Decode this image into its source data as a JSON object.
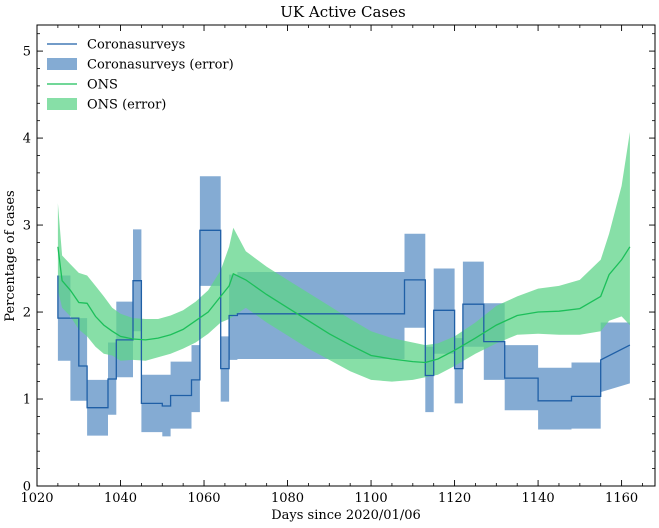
{
  "chart_data": {
    "type": "line",
    "title": "UK Active Cases",
    "xlabel": "Days since 2020/01/06",
    "ylabel": "Percentage of cases",
    "xlim": [
      1020,
      1168
    ],
    "ylim": [
      0,
      5.3
    ],
    "xticks": [
      1020,
      1040,
      1060,
      1080,
      1100,
      1120,
      1140,
      1160
    ],
    "yticks": [
      0,
      1,
      2,
      3,
      4,
      5
    ],
    "grid": false,
    "legend_position": "top-left",
    "colors": {
      "coronasurveys_line": "#1f5fa6",
      "coronasurveys_band": "#5b8fc4",
      "ons_line": "#1cbf5a",
      "ons_band": "#5fd48a"
    },
    "legend": [
      {
        "key": "cs_line",
        "label": "Coronasurveys"
      },
      {
        "key": "cs_band",
        "label": "Coronasurveys (error)"
      },
      {
        "key": "ons_line",
        "label": "ONS"
      },
      {
        "key": "ons_band",
        "label": "ONS (error)"
      }
    ],
    "series": [
      {
        "name": "Coronasurveys",
        "x": [
          1025,
          1025,
          1028,
          1028,
          1030,
          1030,
          1032,
          1032,
          1035,
          1035,
          1037,
          1037,
          1039,
          1039,
          1043,
          1043,
          1045,
          1045,
          1048,
          1048,
          1050,
          1050,
          1052,
          1052,
          1055,
          1055,
          1057,
          1057,
          1059,
          1059,
          1062,
          1062,
          1064,
          1064,
          1066,
          1066,
          1068,
          1068,
          1108,
          1108,
          1111,
          1111,
          1113,
          1113,
          1115,
          1115,
          1118,
          1118,
          1120,
          1120,
          1122,
          1122,
          1125,
          1125,
          1127,
          1127,
          1132,
          1132,
          1140,
          1140,
          1147,
          1147,
          1148,
          1148,
          1155,
          1155,
          1162
        ],
        "y": [
          2.42,
          1.93,
          1.93,
          1.93,
          1.93,
          1.38,
          1.38,
          0.9,
          0.9,
          0.9,
          0.9,
          1.23,
          1.23,
          1.68,
          1.68,
          2.36,
          2.36,
          0.95,
          0.95,
          0.95,
          0.95,
          0.92,
          0.92,
          1.04,
          1.04,
          1.04,
          1.04,
          1.22,
          1.22,
          2.94,
          2.94,
          2.94,
          2.94,
          1.35,
          1.35,
          1.96,
          1.96,
          1.98,
          1.98,
          2.37,
          2.37,
          2.37,
          2.37,
          1.27,
          1.27,
          2.02,
          2.02,
          2.02,
          2.02,
          1.35,
          1.35,
          2.09,
          2.09,
          2.09,
          2.09,
          1.66,
          1.66,
          1.24,
          1.24,
          0.98,
          0.98,
          0.98,
          0.98,
          1.03,
          1.03,
          1.45,
          1.62
        ],
        "upper": [
          2.42,
          2.42,
          2.42,
          1.93,
          1.93,
          1.93,
          1.93,
          1.22,
          1.22,
          1.22,
          1.22,
          1.65,
          1.65,
          2.12,
          2.12,
          2.95,
          2.95,
          1.28,
          1.28,
          1.28,
          1.28,
          1.28,
          1.28,
          1.43,
          1.43,
          1.43,
          1.43,
          1.62,
          1.62,
          3.56,
          3.56,
          3.56,
          3.56,
          1.72,
          1.72,
          2.43,
          2.43,
          2.46,
          2.46,
          2.9,
          2.9,
          2.9,
          2.9,
          1.6,
          1.6,
          2.5,
          2.5,
          2.5,
          2.5,
          1.7,
          1.7,
          2.58,
          2.58,
          2.58,
          2.58,
          2.1,
          2.1,
          1.62,
          1.62,
          1.36,
          1.36,
          1.36,
          1.36,
          1.42,
          1.42,
          1.88,
          1.88
        ],
        "lower": [
          1.44,
          1.44,
          1.44,
          0.98,
          0.98,
          0.98,
          0.98,
          0.58,
          0.58,
          0.58,
          0.58,
          0.82,
          0.82,
          1.25,
          1.25,
          1.78,
          1.78,
          0.62,
          0.62,
          0.62,
          0.62,
          0.57,
          0.57,
          0.66,
          0.66,
          0.66,
          0.66,
          0.85,
          0.85,
          2.3,
          2.3,
          2.3,
          2.3,
          0.97,
          0.97,
          1.45,
          1.45,
          1.46,
          1.46,
          1.82,
          1.82,
          1.82,
          1.82,
          0.85,
          0.85,
          1.52,
          1.52,
          1.52,
          1.52,
          0.95,
          0.95,
          1.6,
          1.6,
          1.6,
          1.6,
          1.22,
          1.22,
          0.87,
          0.87,
          0.65,
          0.65,
          0.65,
          0.65,
          0.66,
          0.66,
          1.08,
          1.18
        ]
      },
      {
        "name": "ONS",
        "x": [
          1025,
          1026,
          1028,
          1030,
          1032,
          1034,
          1036,
          1038,
          1040,
          1043,
          1046,
          1049,
          1052,
          1055,
          1058,
          1061,
          1064,
          1066,
          1067,
          1070,
          1075,
          1080,
          1085,
          1090,
          1095,
          1100,
          1105,
          1110,
          1113,
          1116,
          1120,
          1125,
          1130,
          1135,
          1140,
          1145,
          1150,
          1155,
          1157,
          1160,
          1162
        ],
        "y": [
          2.75,
          2.36,
          2.25,
          2.11,
          2.1,
          1.95,
          1.85,
          1.78,
          1.72,
          1.69,
          1.68,
          1.7,
          1.74,
          1.8,
          1.9,
          2.0,
          2.18,
          2.3,
          2.44,
          2.37,
          2.2,
          2.05,
          1.9,
          1.75,
          1.62,
          1.5,
          1.46,
          1.43,
          1.42,
          1.46,
          1.56,
          1.7,
          1.85,
          1.96,
          2.0,
          2.01,
          2.04,
          2.18,
          2.43,
          2.6,
          2.75
        ],
        "upper": [
          3.25,
          2.65,
          2.55,
          2.45,
          2.42,
          2.3,
          2.18,
          2.05,
          1.98,
          1.93,
          1.92,
          1.92,
          1.96,
          2.02,
          2.12,
          2.25,
          2.48,
          2.75,
          2.97,
          2.7,
          2.52,
          2.37,
          2.22,
          2.07,
          1.92,
          1.78,
          1.7,
          1.65,
          1.62,
          1.64,
          1.72,
          1.88,
          2.07,
          2.18,
          2.27,
          2.3,
          2.37,
          2.6,
          2.9,
          3.45,
          4.07
        ],
        "lower": [
          2.25,
          2.05,
          1.95,
          1.8,
          1.72,
          1.6,
          1.52,
          1.5,
          1.44,
          1.45,
          1.44,
          1.48,
          1.52,
          1.58,
          1.65,
          1.75,
          1.88,
          1.92,
          1.95,
          2.05,
          1.88,
          1.73,
          1.58,
          1.45,
          1.32,
          1.22,
          1.2,
          1.22,
          1.25,
          1.28,
          1.38,
          1.52,
          1.64,
          1.74,
          1.75,
          1.74,
          1.74,
          1.78,
          1.9,
          1.95,
          1.85
        ]
      }
    ]
  }
}
